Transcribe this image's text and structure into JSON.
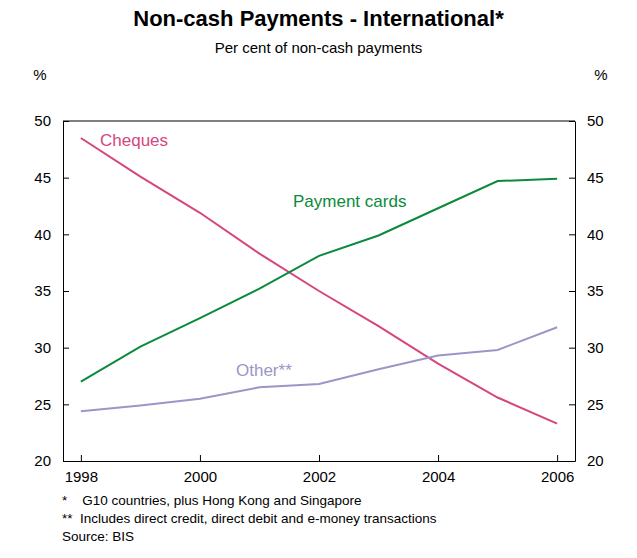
{
  "chart_data": {
    "type": "line",
    "title": "Non-cash Payments - International*",
    "subtitle": "Per cent of non-cash payments",
    "ylabel": "%",
    "y2label": "%",
    "x": [
      1998,
      1999,
      2000,
      2001,
      2002,
      2003,
      2004,
      2005,
      2006
    ],
    "xlim": [
      1997.7,
      2006.3
    ],
    "xticks": [
      1998,
      2000,
      2002,
      2004,
      2006
    ],
    "ylim": [
      20,
      50
    ],
    "yticks": [
      20,
      25,
      30,
      35,
      40,
      45,
      50
    ],
    "y2lim": [
      20,
      50
    ],
    "y2ticks": [
      20,
      25,
      30,
      35,
      40,
      45,
      50
    ],
    "grid": false,
    "series": [
      {
        "name": "Cheques",
        "color": "#d6457f",
        "values": [
          48.5,
          45.1,
          41.9,
          38.3,
          35.0,
          31.9,
          28.6,
          25.6,
          23.3
        ]
      },
      {
        "name": "Payment cards",
        "color": "#0b8a3c",
        "values": [
          27.0,
          30.1,
          32.6,
          35.2,
          38.1,
          39.9,
          42.3,
          44.7,
          44.9
        ]
      },
      {
        "name": "Other**",
        "color": "#9c95c8",
        "values": [
          24.4,
          24.9,
          25.5,
          26.5,
          26.8,
          28.1,
          29.3,
          29.8,
          31.8
        ]
      }
    ],
    "notes": [
      "*    G10 countries, plus Hong Kong and Singapore",
      "**  Includes direct credit, direct debit and e-money transactions",
      "Source: BIS"
    ]
  }
}
